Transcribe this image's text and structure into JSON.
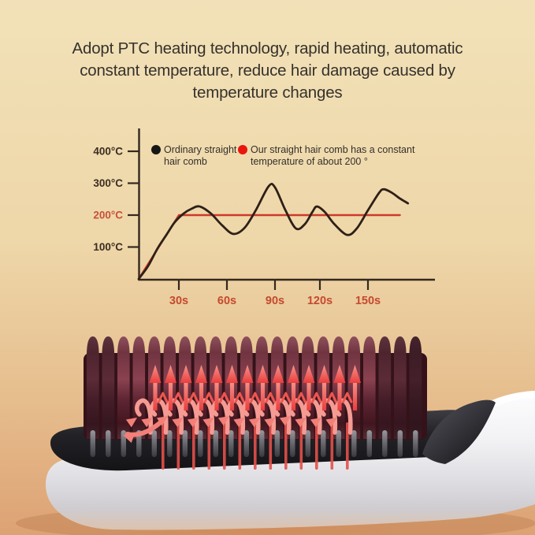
{
  "page": {
    "background_top_color": "#f2e1b8",
    "background_bottom_color": "#dda274",
    "accent_red": "#e8544c"
  },
  "headline": {
    "lines": [
      "Adopt PTC heating technology, rapid heating, automatic",
      "constant temperature, reduce hair damage caused by",
      "temperature changes"
    ]
  },
  "chart_data": {
    "type": "line",
    "title": "",
    "xlabel": "",
    "ylabel": "",
    "x_unit": "s",
    "y_unit": "°C",
    "xlim": [
      0,
      185
    ],
    "ylim": [
      0,
      470
    ],
    "grid": false,
    "legend_position": "top",
    "axis_color": "#34281f",
    "x_tick_label_color": "#c5492f",
    "x_ticks": [
      {
        "value": 30,
        "label": "30s"
      },
      {
        "value": 60,
        "label": "60s"
      },
      {
        "value": 90,
        "label": "90s"
      },
      {
        "value": 120,
        "label": "120s"
      },
      {
        "value": 150,
        "label": "150s"
      }
    ],
    "y_ticks": [
      {
        "value": 100,
        "label": "100°C",
        "color": "#3b2d21"
      },
      {
        "value": 200,
        "label": "200°C",
        "color": "#c8503a"
      },
      {
        "value": 300,
        "label": "300°C",
        "color": "#3b2d21"
      },
      {
        "value": 400,
        "label": "400°C",
        "color": "#3b2d21"
      }
    ],
    "legend": [
      {
        "label": "Ordinary straight hair comb",
        "color": "#161616"
      },
      {
        "label": "Our straight hair comb has a constant temperature of about 200 °",
        "color": "#e8170e"
      }
    ],
    "series": [
      {
        "name": "Ordinary straight hair comb",
        "color": "#2e2017",
        "smooth": true,
        "points": [
          [
            0,
            0
          ],
          [
            7,
            40
          ],
          [
            14,
            95
          ],
          [
            21,
            140
          ],
          [
            27,
            178
          ],
          [
            33,
            205
          ],
          [
            38,
            220
          ],
          [
            43,
            227
          ],
          [
            50,
            205
          ],
          [
            57,
            168
          ],
          [
            64,
            141
          ],
          [
            71,
            160
          ],
          [
            78,
            215
          ],
          [
            86,
            290
          ],
          [
            90,
            287
          ],
          [
            97,
            215
          ],
          [
            104,
            158
          ],
          [
            110,
            172
          ],
          [
            115,
            210
          ],
          [
            118,
            227
          ],
          [
            123,
            210
          ],
          [
            129,
            172
          ],
          [
            137,
            138
          ],
          [
            143,
            158
          ],
          [
            150,
            215
          ],
          [
            157,
            270
          ],
          [
            160,
            281
          ],
          [
            165,
            270
          ],
          [
            170,
            252
          ],
          [
            175,
            237
          ]
        ]
      },
      {
        "name": "Our straight hair comb (constant ~200°)",
        "color": "#cd3a28",
        "smooth": false,
        "points": [
          [
            0,
            0
          ],
          [
            30,
            200
          ],
          [
            170,
            200
          ]
        ]
      }
    ]
  },
  "product": {
    "name": "hair-straightener-comb",
    "bristle_color": "#6d3342",
    "plate_color": "#232227",
    "body_color": "#f1f1f4",
    "heat_arrow_color": "#ee4743",
    "hair_strand_arrow_color": "#f59b93"
  }
}
